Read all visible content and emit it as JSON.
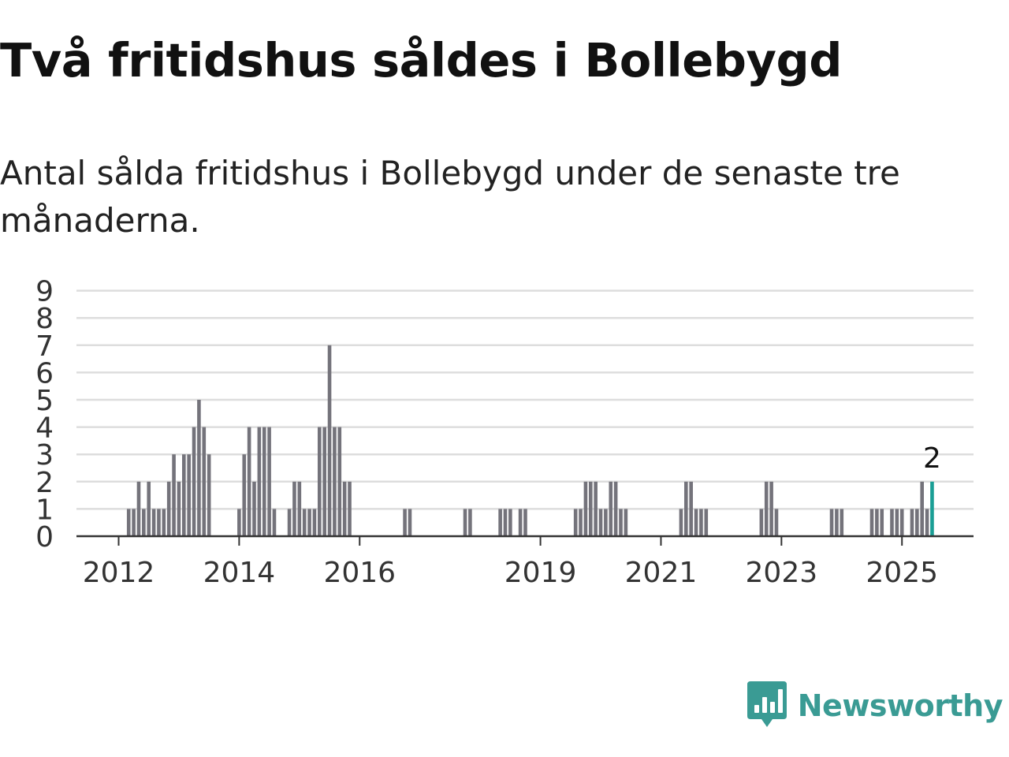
{
  "title": "Två fritidshus såldes i Bollebygd",
  "subtitle": "Antal sålda fritidshus i Bollebygd under de senaste tre månaderna.",
  "brand": {
    "name": "Newsworthy",
    "logo_icon": "bar-chart-speech-bubble-icon",
    "color": "#3a9b94"
  },
  "chart_data": {
    "type": "bar",
    "title": "",
    "xlabel": "",
    "ylabel": "",
    "ylim": [
      0,
      9
    ],
    "yticks": [
      0,
      1,
      2,
      3,
      4,
      5,
      6,
      7,
      8,
      9
    ],
    "grid": true,
    "legend": "none",
    "colors": {
      "bar": "#74737b",
      "highlight": "#1a9e95",
      "grid": "#dddddd",
      "axis": "#333333"
    },
    "x_tick_labels": [
      "2012",
      "2014",
      "2016",
      "2019",
      "2021",
      "2023",
      "2025"
    ],
    "bar_annotation": {
      "month": "2025-07",
      "label": "2"
    },
    "months": [
      "2012-03",
      "2012-04",
      "2012-05",
      "2012-06",
      "2012-07",
      "2012-08",
      "2012-09",
      "2012-10",
      "2012-11",
      "2012-12",
      "2013-01",
      "2013-02",
      "2013-03",
      "2013-04",
      "2013-05",
      "2013-06",
      "2013-07",
      "2013-08",
      "2013-09",
      "2014-01",
      "2014-02",
      "2014-03",
      "2014-04",
      "2014-05",
      "2014-06",
      "2014-07",
      "2014-08",
      "2014-09",
      "2014-11",
      "2014-12",
      "2015-01",
      "2015-02",
      "2015-03",
      "2015-04",
      "2015-05",
      "2015-06",
      "2015-07",
      "2015-08",
      "2015-09",
      "2015-10",
      "2015-11",
      "2016-10",
      "2016-11",
      "2017-10",
      "2017-11",
      "2018-05",
      "2018-06",
      "2018-07",
      "2018-09",
      "2018-10",
      "2019-08",
      "2019-09",
      "2019-10",
      "2019-11",
      "2019-12",
      "2020-01",
      "2020-02",
      "2020-03",
      "2020-04",
      "2020-05",
      "2020-06",
      "2021-05",
      "2021-06",
      "2021-07",
      "2021-08",
      "2021-09",
      "2021-10",
      "2022-09",
      "2022-10",
      "2022-11",
      "2022-12",
      "2023-11",
      "2023-12",
      "2024-01",
      "2024-07",
      "2024-08",
      "2024-09",
      "2024-11",
      "2024-12",
      "2025-01",
      "2025-03",
      "2025-04",
      "2025-05",
      "2025-06",
      "2025-07"
    ],
    "values": [
      1,
      1,
      2,
      1,
      2,
      1,
      1,
      1,
      2,
      3,
      2,
      3,
      3,
      4,
      5,
      4,
      3,
      0,
      0,
      1,
      3,
      4,
      2,
      4,
      4,
      4,
      1,
      0,
      1,
      2,
      2,
      1,
      1,
      1,
      4,
      4,
      7,
      4,
      4,
      2,
      2,
      1,
      1,
      1,
      1,
      1,
      1,
      1,
      1,
      1,
      1,
      1,
      2,
      2,
      2,
      1,
      1,
      2,
      2,
      1,
      1,
      1,
      2,
      2,
      1,
      1,
      1,
      1,
      2,
      2,
      1,
      1,
      1,
      1,
      1,
      1,
      1,
      1,
      1,
      1,
      1,
      1,
      2,
      1,
      2
    ]
  }
}
